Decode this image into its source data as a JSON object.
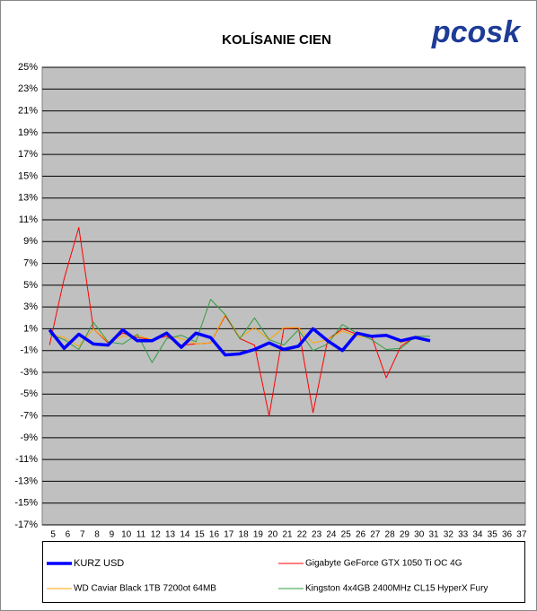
{
  "chart_data": {
    "type": "line",
    "title": "KOLÍSANIE CIEN",
    "logo": "pcosk",
    "categories": [
      "5",
      "6",
      "7",
      "8",
      "9",
      "10",
      "11",
      "12",
      "13",
      "14",
      "15",
      "16",
      "17",
      "18",
      "19",
      "20",
      "21",
      "22",
      "23",
      "24",
      "25",
      "26",
      "27",
      "28",
      "29",
      "30",
      "31",
      "32",
      "33",
      "34",
      "35",
      "36",
      "37"
    ],
    "ylim": [
      -17,
      25
    ],
    "yticks": [
      {
        "value": -17,
        "label": "-17%"
      },
      {
        "value": -15,
        "label": "-15%"
      },
      {
        "value": -13,
        "label": "-13%"
      },
      {
        "value": -11,
        "label": "-11%"
      },
      {
        "value": -9,
        "label": "-9%"
      },
      {
        "value": -7,
        "label": "-7%"
      },
      {
        "value": -5,
        "label": "-5%"
      },
      {
        "value": -3,
        "label": "-3%"
      },
      {
        "value": -1,
        "label": "-1%"
      },
      {
        "value": 1,
        "label": "1%"
      },
      {
        "value": 3,
        "label": "3%"
      },
      {
        "value": 5,
        "label": "5%"
      },
      {
        "value": 7,
        "label": "7%"
      },
      {
        "value": 9,
        "label": "9%"
      },
      {
        "value": 11,
        "label": "11%"
      },
      {
        "value": 13,
        "label": "13%"
      },
      {
        "value": 15,
        "label": "15%"
      },
      {
        "value": 17,
        "label": "17%"
      },
      {
        "value": 19,
        "label": "19%"
      },
      {
        "value": 21,
        "label": "21%"
      },
      {
        "value": 23,
        "label": "23%"
      },
      {
        "value": 25,
        "label": "25%"
      }
    ],
    "grid": true,
    "legend": "bottom",
    "series": [
      {
        "name": "KURZ USD",
        "color": "#0000ff",
        "values": [
          0.9,
          -0.8,
          0.5,
          -0.4,
          -0.5,
          0.9,
          -0.1,
          -0.1,
          0.6,
          -0.7,
          0.6,
          0.2,
          -1.4,
          -1.3,
          -0.9,
          -0.3,
          -0.9,
          -0.6,
          1.0,
          -0.1,
          -1.0,
          0.6,
          0.3,
          0.4,
          -0.1,
          0.2,
          -0.1,
          null,
          null,
          null,
          null,
          null,
          null
        ]
      },
      {
        "name": "Gigabyte GeForce GTX 1050 Ti OC 4G",
        "color": "#ff0000",
        "values": [
          -0.5,
          5.6,
          10.3,
          1.0,
          -0.3,
          0.6,
          0.2,
          0.0,
          0.3,
          -0.5,
          -0.4,
          -0.3,
          2.2,
          0.1,
          -0.5,
          -7.0,
          1.0,
          1.1,
          -6.7,
          0.0,
          1.0,
          0.5,
          0.3,
          -3.5,
          -0.6,
          0.3,
          0.0,
          null,
          null,
          null,
          null,
          null,
          null
        ]
      },
      {
        "name": "WD Caviar Black 1TB 7200ot 64MB",
        "color": "#ffa500",
        "values": [
          0.5,
          0.2,
          -0.6,
          1.0,
          -0.2,
          0.3,
          0.4,
          0.0,
          0.4,
          0.1,
          -0.4,
          -0.3,
          2.3,
          0.2,
          1.1,
          0.0,
          1.1,
          1.1,
          -0.3,
          0.0,
          0.8,
          0.3,
          0.2,
          0.5,
          -0.3,
          0.2,
          0.0,
          null,
          null,
          null,
          null,
          null,
          null
        ]
      },
      {
        "name": "Kingston 4x4GB 2400MHz CL15 HyperX Fury",
        "color": "#2e9e3e",
        "values": [
          0.5,
          0.0,
          -0.9,
          1.6,
          -0.2,
          -0.4,
          0.5,
          -2.1,
          0.1,
          0.4,
          -0.2,
          3.7,
          2.3,
          0.1,
          2.0,
          0.0,
          -0.5,
          0.9,
          -1.0,
          -0.4,
          1.4,
          0.6,
          0.0,
          -0.9,
          -0.8,
          0.3,
          0.3,
          null,
          null,
          null,
          null,
          null,
          null
        ]
      }
    ]
  }
}
